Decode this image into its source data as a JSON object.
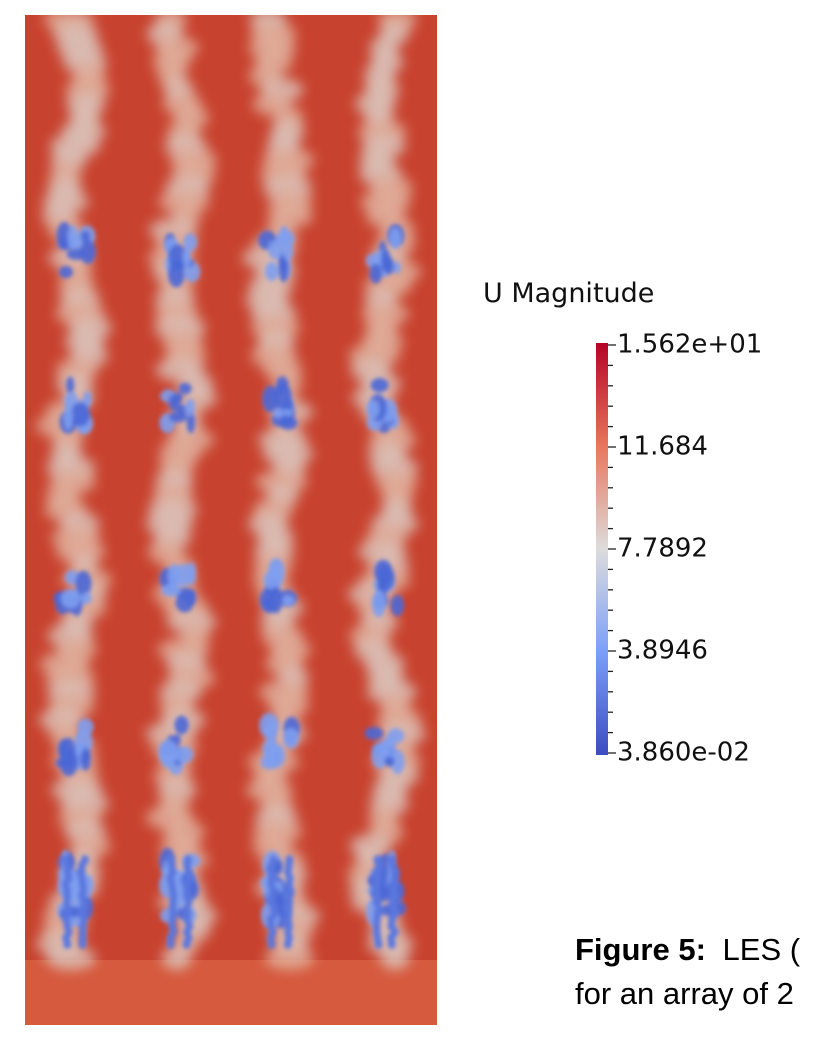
{
  "figure": {
    "colorbar": {
      "title": "U Magnitude",
      "ticks": [
        "1.562e+01",
        "11.684",
        "7.7892",
        "3.8946",
        "3.860e-02"
      ]
    },
    "caption": {
      "label": "Figure 5:",
      "line1": "LES (",
      "line2": "for an array of 2"
    }
  }
}
